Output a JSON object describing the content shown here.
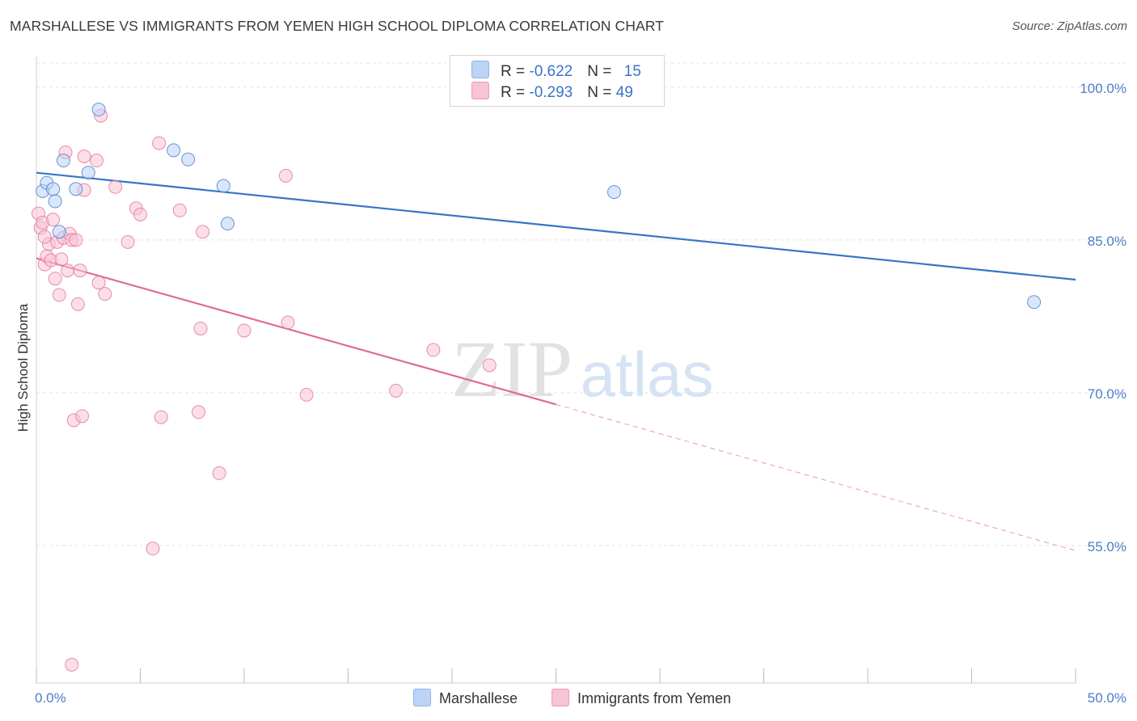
{
  "title": "MARSHALLESE VS IMMIGRANTS FROM YEMEN HIGH SCHOOL DIPLOMA CORRELATION CHART",
  "source": "Source: ZipAtlas.com",
  "watermark": {
    "zip": "ZIP",
    "atlas": "atlas"
  },
  "colors": {
    "blue": "#3a74c7",
    "blue_fill": "#bcd4f5",
    "pink": "#e06b97",
    "pink_fill": "#f8c3d5",
    "grid": "#e4e4e4",
    "tick_text": "#4a7fc6"
  },
  "legend": {
    "rows": [
      {
        "r_label": "R = ",
        "r_value": "-0.622",
        "n_label": "N = ",
        "n_value": "15"
      },
      {
        "r_label": "R = ",
        "r_value": "-0.293",
        "n_label": "N = ",
        "n_value": "49"
      }
    ]
  },
  "chart_data": {
    "type": "scatter",
    "title": "MARSHALLESE VS IMMIGRANTS FROM YEMEN HIGH SCHOOL DIPLOMA CORRELATION CHART",
    "xlabel": "",
    "ylabel": "High School Diploma",
    "xlim": [
      0,
      50
    ],
    "ylim": [
      41.5,
      103
    ],
    "x_ticks": [
      0,
      5,
      10,
      15,
      20,
      25,
      30,
      35,
      40,
      45,
      50
    ],
    "x_tick_labels": [
      {
        "value": 0,
        "label": "0.0%"
      },
      {
        "value": 50,
        "label": "50.0%"
      }
    ],
    "y_gridlines": [
      55,
      70,
      85,
      100
    ],
    "y_tick_labels": [
      {
        "value": 100,
        "label": "100.0%"
      },
      {
        "value": 85,
        "label": "85.0%"
      },
      {
        "value": 70,
        "label": "70.0%"
      },
      {
        "value": 55,
        "label": "55.0%"
      }
    ],
    "legend_position": "top-center",
    "series": [
      {
        "name": "Marshallese",
        "color": "blue",
        "R": -0.622,
        "N": 15,
        "points": [
          [
            0.3,
            89.8
          ],
          [
            0.5,
            90.6
          ],
          [
            0.8,
            90.0
          ],
          [
            0.9,
            88.8
          ],
          [
            1.1,
            85.8
          ],
          [
            1.3,
            92.8
          ],
          [
            1.9,
            90.0
          ],
          [
            2.5,
            91.6
          ],
          [
            3.0,
            97.8
          ],
          [
            6.6,
            93.8
          ],
          [
            7.3,
            92.9
          ],
          [
            9.0,
            90.3
          ],
          [
            9.2,
            86.6
          ],
          [
            27.8,
            89.7
          ],
          [
            48.0,
            78.9
          ]
        ],
        "trend": {
          "x0": 0,
          "y0": 91.6,
          "x1": 50,
          "y1": 81.1,
          "dashed_from": null
        }
      },
      {
        "name": "Immigrants from Yemen",
        "color": "pink",
        "R": -0.293,
        "N": 49,
        "points": [
          [
            0.1,
            87.6
          ],
          [
            0.2,
            86.2
          ],
          [
            0.3,
            86.7
          ],
          [
            0.4,
            82.6
          ],
          [
            0.5,
            83.4
          ],
          [
            0.6,
            84.6
          ],
          [
            0.7,
            83.0
          ],
          [
            0.8,
            87.0
          ],
          [
            0.9,
            81.2
          ],
          [
            1.0,
            84.8
          ],
          [
            1.1,
            79.6
          ],
          [
            1.2,
            83.1
          ],
          [
            1.3,
            85.2
          ],
          [
            1.4,
            93.6
          ],
          [
            1.5,
            82.0
          ],
          [
            1.6,
            85.6
          ],
          [
            1.7,
            85.0
          ],
          [
            1.8,
            67.3
          ],
          [
            1.9,
            85.0
          ],
          [
            2.0,
            78.7
          ],
          [
            2.1,
            82.0
          ],
          [
            2.2,
            67.7
          ],
          [
            2.3,
            89.9
          ],
          [
            2.3,
            93.2
          ],
          [
            2.9,
            92.8
          ],
          [
            3.0,
            80.8
          ],
          [
            3.1,
            97.2
          ],
          [
            3.3,
            79.7
          ],
          [
            3.8,
            90.2
          ],
          [
            4.4,
            84.8
          ],
          [
            4.8,
            88.1
          ],
          [
            5.0,
            87.5
          ],
          [
            5.6,
            54.7
          ],
          [
            5.9,
            94.5
          ],
          [
            6.0,
            67.6
          ],
          [
            6.9,
            87.9
          ],
          [
            7.8,
            68.1
          ],
          [
            7.9,
            76.3
          ],
          [
            8.0,
            85.8
          ],
          [
            8.8,
            62.1
          ],
          [
            10.0,
            76.1
          ],
          [
            12.0,
            91.3
          ],
          [
            12.1,
            76.9
          ],
          [
            13.0,
            69.8
          ],
          [
            17.3,
            70.2
          ],
          [
            19.1,
            74.2
          ],
          [
            21.8,
            72.7
          ],
          [
            1.7,
            43.3
          ],
          [
            0.4,
            85.3
          ]
        ],
        "trend": {
          "x0": 0,
          "y0": 83.2,
          "x1": 50,
          "y1": 54.5,
          "dashed_from": 25
        }
      }
    ]
  },
  "bottom_legend": [
    {
      "label": "Marshallese"
    },
    {
      "label": "Immigrants from Yemen"
    }
  ]
}
